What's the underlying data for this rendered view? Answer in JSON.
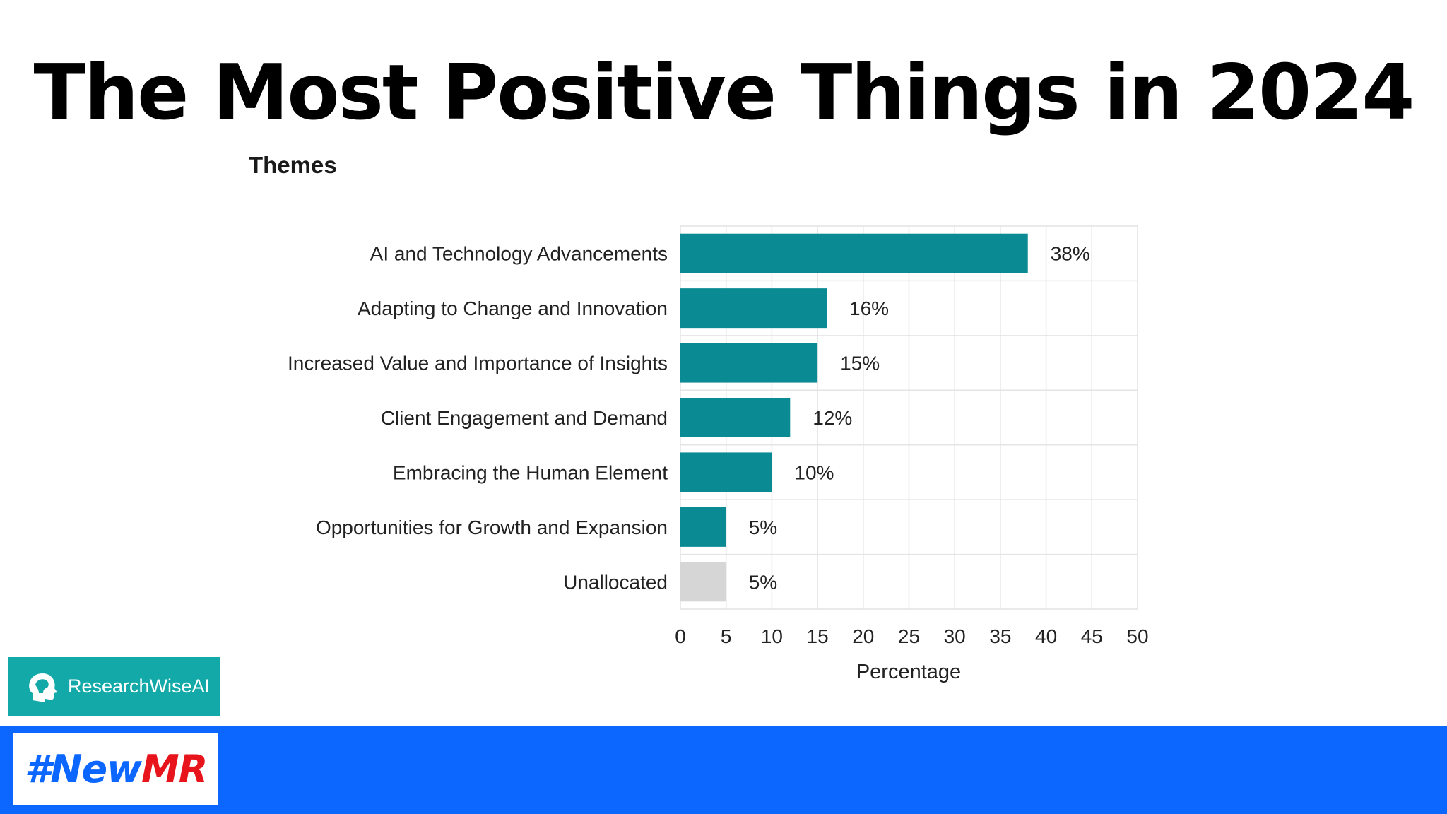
{
  "title": "The Most Positive Things in 2024",
  "subtitle": "Themes",
  "logo_text": "ResearchWiseAI",
  "hashtag": {
    "part1": "#New",
    "part2": "MR"
  },
  "colors": {
    "bar": "#0a8a93",
    "bar_unallocated": "#d6d6d6",
    "footer": "#0b67ff",
    "logo_bg": "#14a9a9",
    "tag_red": "#e8141c"
  },
  "chart_data": {
    "type": "bar",
    "orientation": "horizontal",
    "categories": [
      "AI and Technology Advancements",
      "Adapting to Change and Innovation",
      "Increased Value and Importance of Insights",
      "Client Engagement and Demand",
      "Embracing the Human Element",
      "Opportunities for Growth and Expansion",
      "Unallocated"
    ],
    "values": [
      38,
      16,
      15,
      12,
      10,
      5,
      5
    ],
    "labels": [
      "38%",
      "16%",
      "15%",
      "12%",
      "10%",
      "5%",
      "5%"
    ],
    "xlabel": "Percentage",
    "ylabel": "",
    "xlim": [
      0,
      50
    ],
    "xticks": [
      0,
      5,
      10,
      15,
      20,
      25,
      30,
      35,
      40,
      45,
      50
    ],
    "grid": true,
    "legend": "none"
  }
}
